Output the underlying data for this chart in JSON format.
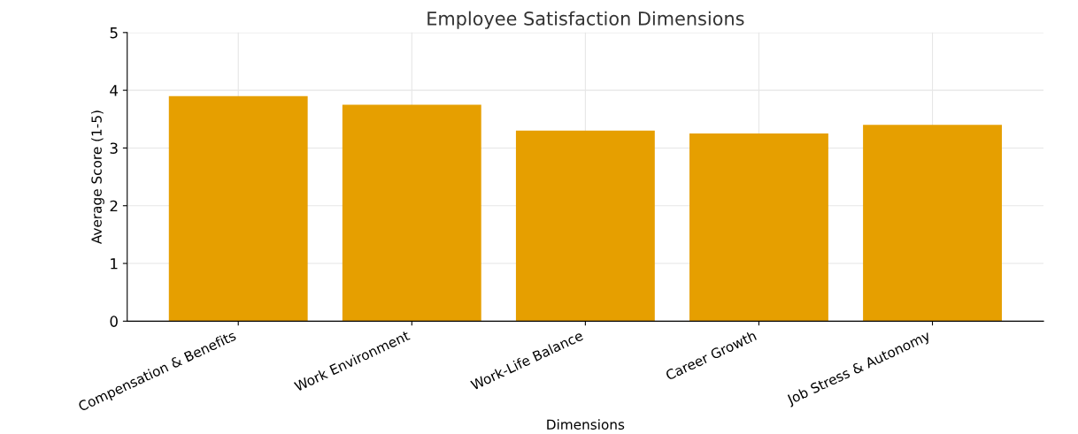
{
  "chart_data": {
    "type": "bar",
    "title": "Employee Satisfaction Dimensions",
    "xlabel": "Dimensions",
    "ylabel": "Average Score (1-5)",
    "categories": [
      "Compensation & Benefits",
      "Work Environment",
      "Work-Life Balance",
      "Career Growth",
      "Job Stress & Autonomy"
    ],
    "values": [
      3.9,
      3.75,
      3.3,
      3.25,
      3.4
    ],
    "color": "#e69f00",
    "ylim": [
      0,
      5
    ],
    "yticks": [
      0,
      1,
      2,
      3,
      4,
      5
    ],
    "grid": true
  }
}
